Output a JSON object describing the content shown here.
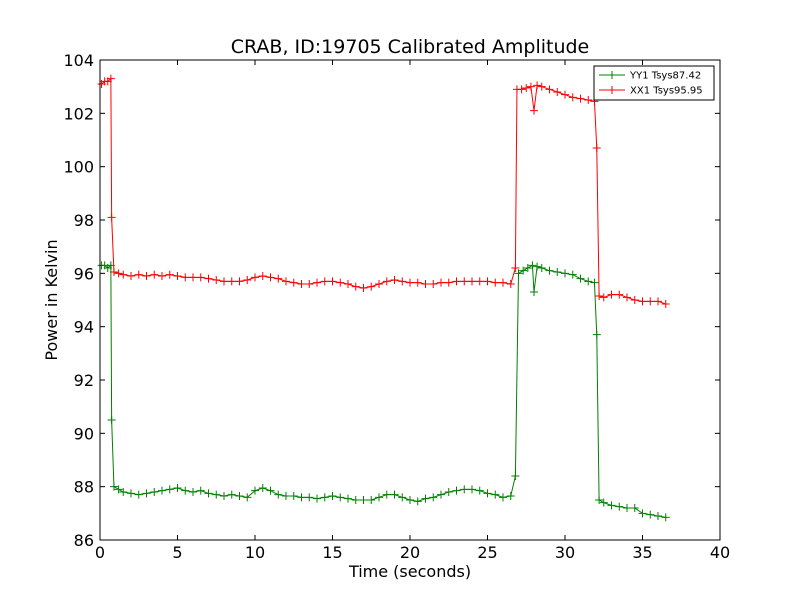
{
  "chart_data": {
    "type": "line",
    "title": "CRAB, ID:19705 Calibrated Amplitude",
    "xlabel": "Time (seconds)",
    "ylabel": "Power in Kelvin",
    "xlim": [
      0,
      40
    ],
    "ylim": [
      86,
      104
    ],
    "xticks": [
      "0",
      "5",
      "10",
      "15",
      "20",
      "25",
      "30",
      "35",
      "40"
    ],
    "yticks": [
      "86",
      "88",
      "90",
      "92",
      "94",
      "96",
      "98",
      "100",
      "102",
      "104"
    ],
    "grid": false,
    "legend_position": "top-right",
    "marker": "plus",
    "series": [
      {
        "name": "YY1 Tsys87.42",
        "color": "#008000",
        "points": [
          [
            0.1,
            96.3
          ],
          [
            0.3,
            96.3
          ],
          [
            0.5,
            96.2
          ],
          [
            0.7,
            96.3
          ],
          [
            0.75,
            90.5
          ],
          [
            0.9,
            88.0
          ],
          [
            1.2,
            87.9
          ],
          [
            1.5,
            87.8
          ],
          [
            2.0,
            87.75
          ],
          [
            2.5,
            87.7
          ],
          [
            3.0,
            87.75
          ],
          [
            3.5,
            87.8
          ],
          [
            4.0,
            87.85
          ],
          [
            4.5,
            87.9
          ],
          [
            5.0,
            87.95
          ],
          [
            5.5,
            87.85
          ],
          [
            6.0,
            87.8
          ],
          [
            6.5,
            87.85
          ],
          [
            7.0,
            87.75
          ],
          [
            7.5,
            87.7
          ],
          [
            8.0,
            87.65
          ],
          [
            8.5,
            87.7
          ],
          [
            9.0,
            87.65
          ],
          [
            9.5,
            87.6
          ],
          [
            10.0,
            87.85
          ],
          [
            10.5,
            87.95
          ],
          [
            11.0,
            87.85
          ],
          [
            11.5,
            87.7
          ],
          [
            12.0,
            87.65
          ],
          [
            12.5,
            87.65
          ],
          [
            13.0,
            87.6
          ],
          [
            13.5,
            87.6
          ],
          [
            14.0,
            87.55
          ],
          [
            14.5,
            87.6
          ],
          [
            15.0,
            87.65
          ],
          [
            15.5,
            87.6
          ],
          [
            16.0,
            87.55
          ],
          [
            16.5,
            87.5
          ],
          [
            17.0,
            87.5
          ],
          [
            17.5,
            87.5
          ],
          [
            18.0,
            87.6
          ],
          [
            18.5,
            87.7
          ],
          [
            19.0,
            87.7
          ],
          [
            19.5,
            87.6
          ],
          [
            20.0,
            87.5
          ],
          [
            20.5,
            87.45
          ],
          [
            21.0,
            87.55
          ],
          [
            21.5,
            87.6
          ],
          [
            22.0,
            87.7
          ],
          [
            22.5,
            87.8
          ],
          [
            23.0,
            87.85
          ],
          [
            23.5,
            87.9
          ],
          [
            24.0,
            87.9
          ],
          [
            24.5,
            87.85
          ],
          [
            25.0,
            87.75
          ],
          [
            25.5,
            87.7
          ],
          [
            26.0,
            87.6
          ],
          [
            26.5,
            87.65
          ],
          [
            26.8,
            88.4
          ],
          [
            27.0,
            96.0
          ],
          [
            27.3,
            96.1
          ],
          [
            27.6,
            96.2
          ],
          [
            27.9,
            96.3
          ],
          [
            28.0,
            95.3
          ],
          [
            28.2,
            96.25
          ],
          [
            28.5,
            96.2
          ],
          [
            29.0,
            96.1
          ],
          [
            29.5,
            96.05
          ],
          [
            30.0,
            96.0
          ],
          [
            30.5,
            95.95
          ],
          [
            31.0,
            95.8
          ],
          [
            31.5,
            95.7
          ],
          [
            31.9,
            95.65
          ],
          [
            32.05,
            93.7
          ],
          [
            32.2,
            87.5
          ],
          [
            32.5,
            87.4
          ],
          [
            33.0,
            87.3
          ],
          [
            33.5,
            87.25
          ],
          [
            34.0,
            87.2
          ],
          [
            34.5,
            87.2
          ],
          [
            35.0,
            87.0
          ],
          [
            35.5,
            86.95
          ],
          [
            36.0,
            86.9
          ],
          [
            36.5,
            86.85
          ]
        ]
      },
      {
        "name": "XX1 Tsys95.95",
        "color": "#ff0000",
        "points": [
          [
            0.1,
            103.1
          ],
          [
            0.3,
            103.2
          ],
          [
            0.5,
            103.2
          ],
          [
            0.7,
            103.3
          ],
          [
            0.75,
            98.1
          ],
          [
            0.9,
            96.05
          ],
          [
            1.2,
            96.0
          ],
          [
            1.5,
            95.95
          ],
          [
            2.0,
            95.9
          ],
          [
            2.5,
            95.95
          ],
          [
            3.0,
            95.9
          ],
          [
            3.5,
            95.95
          ],
          [
            4.0,
            95.9
          ],
          [
            4.5,
            95.95
          ],
          [
            5.0,
            95.9
          ],
          [
            5.5,
            95.85
          ],
          [
            6.0,
            95.85
          ],
          [
            6.5,
            95.85
          ],
          [
            7.0,
            95.8
          ],
          [
            7.5,
            95.75
          ],
          [
            8.0,
            95.7
          ],
          [
            8.5,
            95.7
          ],
          [
            9.0,
            95.7
          ],
          [
            9.5,
            95.75
          ],
          [
            10.0,
            95.85
          ],
          [
            10.5,
            95.9
          ],
          [
            11.0,
            95.85
          ],
          [
            11.5,
            95.8
          ],
          [
            12.0,
            95.7
          ],
          [
            12.5,
            95.65
          ],
          [
            13.0,
            95.6
          ],
          [
            13.5,
            95.6
          ],
          [
            14.0,
            95.65
          ],
          [
            14.5,
            95.7
          ],
          [
            15.0,
            95.7
          ],
          [
            15.5,
            95.65
          ],
          [
            16.0,
            95.6
          ],
          [
            16.5,
            95.5
          ],
          [
            17.0,
            95.45
          ],
          [
            17.5,
            95.5
          ],
          [
            18.0,
            95.6
          ],
          [
            18.5,
            95.7
          ],
          [
            19.0,
            95.75
          ],
          [
            19.5,
            95.7
          ],
          [
            20.0,
            95.65
          ],
          [
            20.5,
            95.65
          ],
          [
            21.0,
            95.6
          ],
          [
            21.5,
            95.6
          ],
          [
            22.0,
            95.65
          ],
          [
            22.5,
            95.65
          ],
          [
            23.0,
            95.7
          ],
          [
            23.5,
            95.7
          ],
          [
            24.0,
            95.7
          ],
          [
            24.5,
            95.7
          ],
          [
            25.0,
            95.7
          ],
          [
            25.5,
            95.65
          ],
          [
            26.0,
            95.65
          ],
          [
            26.5,
            95.6
          ],
          [
            26.8,
            96.2
          ],
          [
            26.9,
            102.9
          ],
          [
            27.2,
            102.9
          ],
          [
            27.5,
            102.95
          ],
          [
            27.8,
            103.0
          ],
          [
            28.0,
            102.1
          ],
          [
            28.2,
            103.05
          ],
          [
            28.5,
            103.0
          ],
          [
            29.0,
            102.9
          ],
          [
            29.5,
            102.8
          ],
          [
            30.0,
            102.7
          ],
          [
            30.5,
            102.6
          ],
          [
            31.0,
            102.55
          ],
          [
            31.5,
            102.5
          ],
          [
            31.9,
            102.45
          ],
          [
            32.05,
            100.7
          ],
          [
            32.2,
            95.15
          ],
          [
            32.5,
            95.1
          ],
          [
            33.0,
            95.2
          ],
          [
            33.5,
            95.2
          ],
          [
            34.0,
            95.1
          ],
          [
            34.5,
            95.0
          ],
          [
            35.0,
            94.95
          ],
          [
            35.5,
            94.95
          ],
          [
            36.0,
            94.95
          ],
          [
            36.5,
            94.85
          ]
        ]
      }
    ]
  }
}
